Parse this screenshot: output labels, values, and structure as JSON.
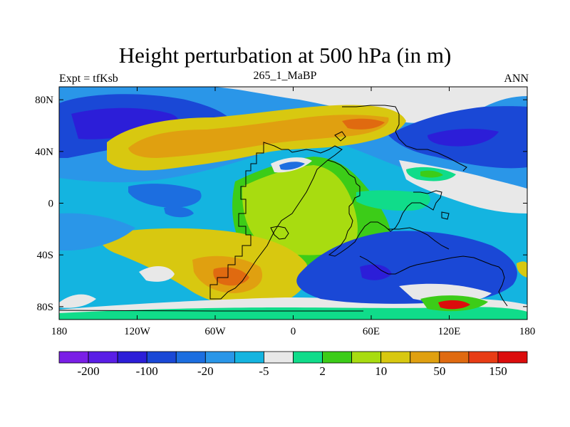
{
  "title": "Height perturbation at 500 hPa (in m)",
  "subtitle_left": "Expt = tfKsb",
  "subtitle_center": "265_1_MaBP",
  "subtitle_right": "ANN",
  "axes": {
    "lon_ticks": [
      "180",
      "120W",
      "60W",
      "0",
      "60E",
      "120E",
      "180"
    ],
    "lat_ticks": [
      "80N",
      "40N",
      "0",
      "40S",
      "80S"
    ]
  },
  "colorbar": {
    "colors": [
      "#7a1fe6",
      "#5a1ee6",
      "#2c1ed8",
      "#1a48d6",
      "#1c6ee0",
      "#2a96e8",
      "#14b4e0",
      "#e8e8e8",
      "#10dc8a",
      "#3ccc18",
      "#a8dc10",
      "#d8c810",
      "#e0a010",
      "#e06a10",
      "#e83c14",
      "#dc0c0c"
    ],
    "labels": [
      "-200",
      "-100",
      "-20",
      "-5",
      "2",
      "10",
      "50",
      "150"
    ]
  },
  "legend_colors": {
    "ocean_bg": "#14b4e0",
    "land_outline": "#000000"
  }
}
